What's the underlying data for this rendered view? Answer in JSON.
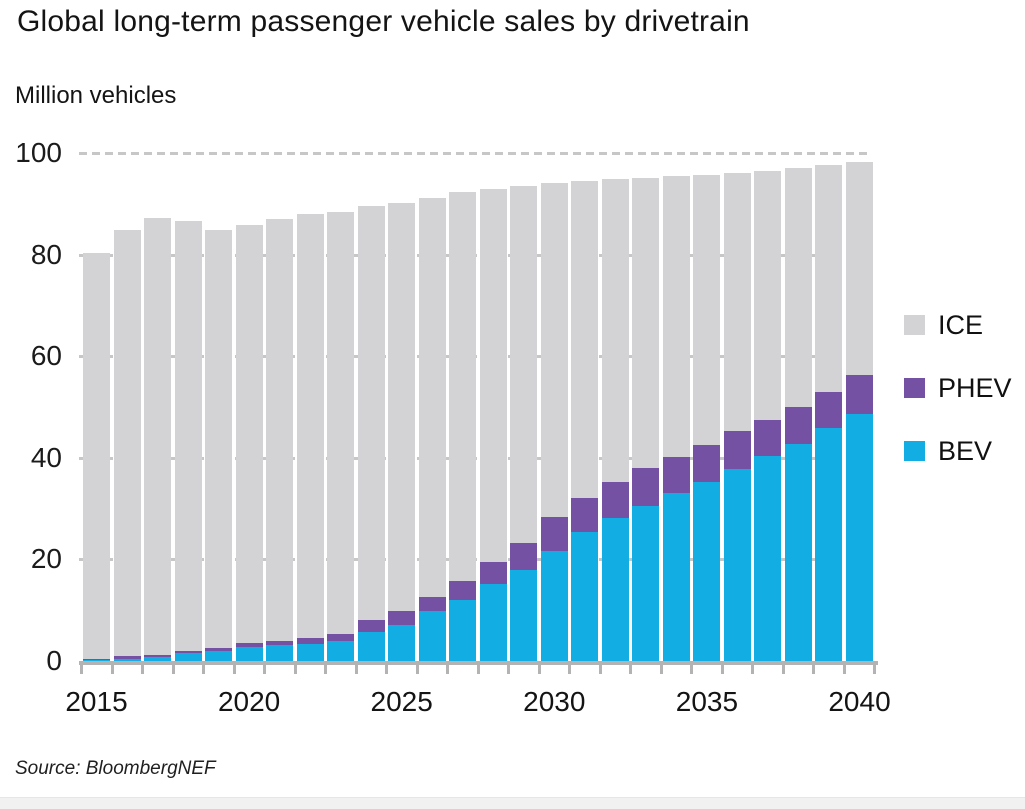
{
  "title": "Global long-term passenger vehicle sales by drivetrain",
  "y_axis_label": "Million vehicles",
  "source": "Source: BloombergNEF",
  "colors": {
    "ice": "#d3d3d5",
    "phev": "#7551a4",
    "bev": "#12ade2",
    "axis": "#b3b3b3",
    "gridline": "#c7c7c7",
    "text": "#141414"
  },
  "legend": [
    {
      "label": "ICE",
      "color_key": "ice"
    },
    {
      "label": "PHEV",
      "color_key": "phev"
    },
    {
      "label": "BEV",
      "color_key": "bev"
    }
  ],
  "chart_data": {
    "type": "bar",
    "stacked": true,
    "title": "Global long-term passenger vehicle sales by drivetrain",
    "xlabel": "",
    "ylabel": "Million vehicles",
    "ylim": [
      0,
      100
    ],
    "y_ticks": [
      0,
      20,
      40,
      60,
      80,
      100
    ],
    "x_tick_labels": [
      "2015",
      "2020",
      "2025",
      "2030",
      "2035",
      "2040"
    ],
    "grid": "horizontal-dashed",
    "legend_position": "right",
    "categories": [
      2015,
      2016,
      2017,
      2018,
      2019,
      2020,
      2021,
      2022,
      2023,
      2024,
      2025,
      2026,
      2027,
      2028,
      2029,
      2030,
      2031,
      2032,
      2033,
      2034,
      2035,
      2036,
      2037,
      2038,
      2039,
      2040
    ],
    "series": [
      {
        "name": "BEV",
        "values": [
          0.2,
          0.3,
          0.7,
          1.5,
          2.0,
          2.7,
          3.1,
          3.4,
          3.9,
          5.7,
          7.1,
          9.8,
          12.1,
          15.2,
          17.9,
          21.7,
          25.3,
          28.1,
          30.5,
          33.0,
          35.3,
          37.7,
          40.4,
          42.8,
          45.8,
          48.6
        ]
      },
      {
        "name": "PHEV",
        "values": [
          0.2,
          0.6,
          0.4,
          0.4,
          0.5,
          0.8,
          0.9,
          1.2,
          1.4,
          2.3,
          2.8,
          2.8,
          3.6,
          4.2,
          5.4,
          6.6,
          6.7,
          7.2,
          7.4,
          7.2,
          7.3,
          7.5,
          7.1,
          7.3,
          7.2,
          7.8
        ]
      },
      {
        "name": "ICE",
        "values": [
          79.9,
          83.9,
          86.2,
          84.7,
          82.3,
          82.4,
          83.1,
          83.3,
          83.1,
          81.5,
          80.3,
          78.6,
          76.6,
          73.6,
          70.3,
          65.8,
          62.5,
          59.5,
          57.2,
          55.2,
          53.1,
          50.8,
          49.0,
          47.0,
          44.7,
          41.9
        ]
      }
    ]
  }
}
